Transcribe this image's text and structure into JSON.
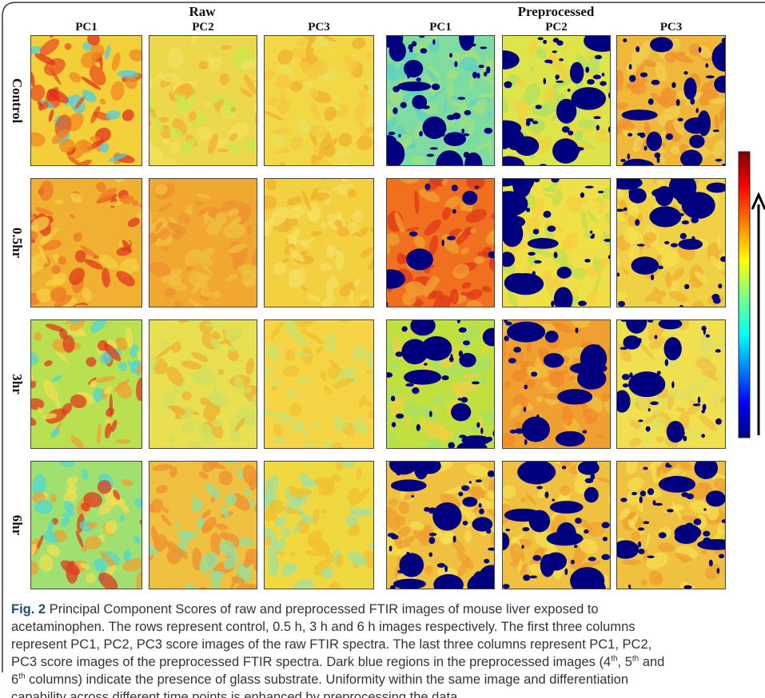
{
  "figure": {
    "group_headers": [
      "Raw",
      "Preprocessed"
    ],
    "column_labels": [
      "PC1",
      "PC2",
      "PC3",
      "PC1",
      "PC2",
      "PC3"
    ],
    "row_labels": [
      "Control",
      "0.5hr",
      "3hr",
      "6hr"
    ]
  },
  "caption": {
    "label": "Fig. 2",
    "runs": [
      {
        "text": "Principal Component Scores of raw and preprocessed FTIR images of mouse liver exposed to acetaminophen. The rows represent control, 0.5 h, 3 h and 6 h images respectively. The first three columns represent PC1, PC2, PC3 score images of the raw FTIR spectra. The last three columns represent PC1, PC2, PC3 score images of the preprocessed FTIR spectra. Dark blue regions in the preprocessed images (4",
        "style": "normal"
      },
      {
        "text": "th",
        "style": "sup"
      },
      {
        "text": ", 5",
        "style": "normal"
      },
      {
        "text": "th",
        "style": "sup"
      },
      {
        "text": " and 6",
        "style": "normal"
      },
      {
        "text": "th",
        "style": "sup"
      },
      {
        "text": " columns) indicate the presence of glass substrate. Uniformity within the same image and differentiation capability across different time points is enhanced by preprocessing the data",
        "style": "normal"
      }
    ]
  }
}
